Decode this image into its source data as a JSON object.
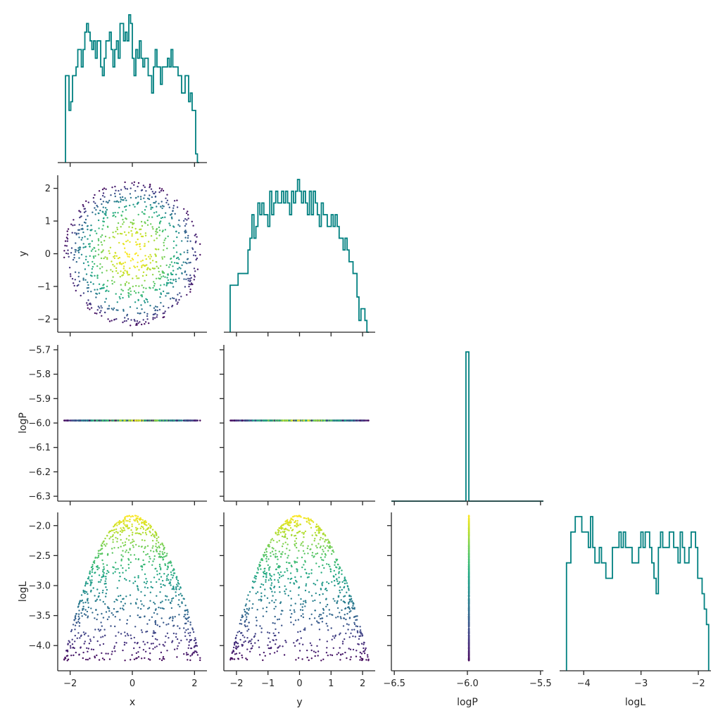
{
  "chart_data": {
    "type": "scatter",
    "layout": "corner-plot",
    "variables": [
      "x",
      "y",
      "logP",
      "logL"
    ],
    "histogram_color": "#008080",
    "colormap": "viridis",
    "color_by": "logL",
    "axes": {
      "x": {
        "label": "x",
        "ticks": [
          -2,
          0,
          2
        ],
        "tick_labels": [
          "−2",
          "0",
          "2"
        ],
        "range": [
          -2.4,
          2.4
        ]
      },
      "y": {
        "label": "y",
        "ticks": [
          -2,
          -1,
          0,
          1,
          2
        ],
        "tick_labels": [
          "−2",
          "−1",
          "0",
          "1",
          "2"
        ],
        "range": [
          -2.4,
          2.4
        ]
      },
      "logP": {
        "label": "logP",
        "ticks": [
          -6.3,
          -6.2,
          -6.1,
          -6.0,
          -5.9,
          -5.8,
          -5.7
        ],
        "tick_labels": [
          "−6.3",
          "−6.2",
          "−6.1",
          "−6.0",
          "−5.9",
          "−5.8",
          "−5.7"
        ],
        "x_ticks": [
          -6.5,
          -6.0,
          -5.5
        ],
        "x_tick_labels": [
          "−6.5",
          "−6.0",
          "−5.5"
        ],
        "range": [
          -6.32,
          -5.68
        ],
        "x_range": [
          -6.52,
          -5.48
        ]
      },
      "logL": {
        "label": "logL",
        "ticks": [
          -4.0,
          -3.5,
          -3.0,
          -2.5,
          -2.0
        ],
        "tick_labels": [
          "−4.0",
          "−3.5",
          "−3.0",
          "−2.5",
          "−2.0"
        ],
        "x_ticks": [
          -4,
          -3,
          -2
        ],
        "x_tick_labels": [
          "−4",
          "−3",
          "−2"
        ],
        "range": [
          -4.42,
          -1.78
        ]
      }
    },
    "histograms": {
      "x": {
        "range": [
          -2.15,
          2.15
        ],
        "counts": [
          10,
          10,
          6,
          7,
          10,
          10,
          11,
          13,
          13,
          11,
          13,
          15,
          16,
          15,
          14,
          13,
          14,
          12,
          14,
          14,
          11,
          10,
          12,
          14,
          14,
          15,
          13,
          11,
          13,
          14,
          12,
          16,
          16,
          14,
          15,
          14,
          17,
          16,
          12,
          10,
          13,
          12,
          14,
          12,
          11,
          12,
          12,
          10,
          10,
          8,
          11,
          13,
          11,
          11,
          9,
          11,
          11,
          11,
          12,
          11,
          13,
          11,
          11,
          11,
          10,
          10,
          8,
          8,
          10,
          10,
          7,
          8,
          6,
          6,
          1,
          0
        ]
      },
      "y": {
        "range": [
          -2.2,
          2.2
        ],
        "counts": [
          4,
          4,
          4,
          4,
          5,
          5,
          5,
          5,
          5,
          7,
          8,
          10,
          8,
          9,
          11,
          10,
          11,
          10,
          10,
          9,
          12,
          10,
          11,
          12,
          11,
          11,
          12,
          11,
          12,
          11,
          10,
          12,
          11,
          12,
          13,
          12,
          11,
          12,
          11,
          10,
          12,
          10,
          12,
          11,
          10,
          9,
          11,
          10,
          10,
          9,
          9,
          10,
          9,
          10,
          9,
          8,
          8,
          7,
          8,
          7,
          6,
          6,
          5,
          5,
          3,
          1,
          2,
          2,
          1,
          0
        ]
      },
      "logP": {
        "value": -6.0,
        "bin_width": 0.02,
        "count": 1
      },
      "logL": {
        "range": [
          -4.3,
          -1.82
        ],
        "counts": [
          7,
          7,
          9,
          9,
          10,
          10,
          10,
          9,
          9,
          9,
          8,
          10,
          8,
          7,
          7,
          8,
          7,
          7,
          6,
          6,
          6,
          8,
          8,
          8,
          9,
          8,
          9,
          8,
          8,
          8,
          7,
          7,
          7,
          8,
          9,
          8,
          9,
          9,
          8,
          7,
          6,
          5,
          8,
          9,
          8,
          8,
          8,
          9,
          9,
          8,
          8,
          7,
          9,
          8,
          7,
          7,
          8,
          9,
          9,
          8,
          6,
          6,
          5,
          4,
          3
        ]
      }
    },
    "samples": {
      "n": 900,
      "x_range": [
        -2.2,
        2.2
      ],
      "y_range": [
        -2.2,
        2.2
      ],
      "logP_value": -5.99,
      "logL_range": [
        -4.3,
        -1.83
      ]
    }
  }
}
